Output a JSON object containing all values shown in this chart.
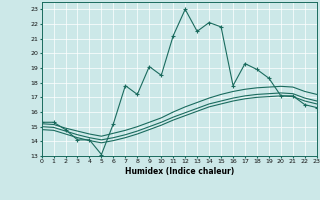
{
  "xlabel": "Humidex (Indice chaleur)",
  "background_color": "#cce8e8",
  "line_color": "#1a6b5e",
  "xlim": [
    0,
    23
  ],
  "ylim": [
    13,
    23.5
  ],
  "yticks": [
    13,
    14,
    15,
    16,
    17,
    18,
    19,
    20,
    21,
    22,
    23
  ],
  "xticks": [
    0,
    1,
    2,
    3,
    4,
    5,
    6,
    7,
    8,
    9,
    10,
    11,
    12,
    13,
    14,
    15,
    16,
    17,
    18,
    19,
    20,
    21,
    22,
    23
  ],
  "line1_x": [
    0,
    1,
    2,
    3,
    4,
    5,
    6,
    7,
    8,
    9,
    10,
    11,
    12,
    13,
    14,
    15,
    16,
    17,
    18,
    19,
    20,
    21,
    22,
    23
  ],
  "line1_y": [
    15.3,
    15.3,
    14.8,
    14.1,
    14.1,
    13.1,
    15.2,
    17.8,
    17.2,
    19.1,
    18.5,
    21.2,
    23.0,
    21.5,
    22.1,
    21.8,
    17.8,
    19.3,
    18.9,
    18.3,
    17.1,
    17.1,
    16.5,
    16.3
  ],
  "line2_x": [
    0,
    1,
    2,
    3,
    4,
    5,
    6,
    7,
    8,
    9,
    10,
    11,
    12,
    13,
    14,
    15,
    16,
    17,
    18,
    19,
    20,
    21,
    22,
    23
  ],
  "line2_y": [
    15.2,
    15.15,
    14.9,
    14.7,
    14.5,
    14.35,
    14.55,
    14.75,
    15.0,
    15.3,
    15.6,
    16.0,
    16.35,
    16.65,
    16.95,
    17.2,
    17.4,
    17.55,
    17.65,
    17.7,
    17.75,
    17.7,
    17.4,
    17.2
  ],
  "line3_x": [
    0,
    1,
    2,
    3,
    4,
    5,
    6,
    7,
    8,
    9,
    10,
    11,
    12,
    13,
    14,
    15,
    16,
    17,
    18,
    19,
    20,
    21,
    22,
    23
  ],
  "line3_y": [
    15.0,
    14.95,
    14.7,
    14.45,
    14.25,
    14.1,
    14.25,
    14.45,
    14.7,
    15.0,
    15.3,
    15.65,
    15.95,
    16.25,
    16.55,
    16.75,
    16.95,
    17.1,
    17.2,
    17.25,
    17.3,
    17.25,
    16.95,
    16.75
  ],
  "line4_x": [
    0,
    1,
    2,
    3,
    4,
    5,
    6,
    7,
    8,
    9,
    10,
    11,
    12,
    13,
    14,
    15,
    16,
    17,
    18,
    19,
    20,
    21,
    22,
    23
  ],
  "line4_y": [
    14.8,
    14.75,
    14.5,
    14.25,
    14.05,
    13.9,
    14.05,
    14.25,
    14.5,
    14.8,
    15.1,
    15.45,
    15.75,
    16.05,
    16.35,
    16.55,
    16.75,
    16.9,
    17.0,
    17.05,
    17.1,
    17.05,
    16.75,
    16.55
  ]
}
